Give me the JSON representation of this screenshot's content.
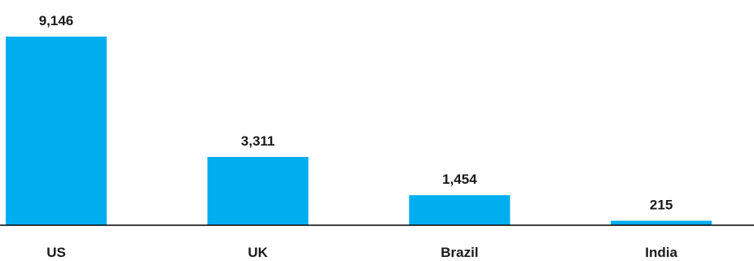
{
  "chart_data": {
    "type": "bar",
    "categories": [
      "US",
      "UK",
      "Brazil",
      "India"
    ],
    "values": [
      9146,
      3311,
      1454,
      215
    ],
    "value_labels": [
      "9,146",
      "3,311",
      "1,454",
      "215"
    ],
    "title": "",
    "xlabel": "",
    "ylabel": "",
    "ylim": [
      0,
      9146
    ],
    "grid": false,
    "legend": "none",
    "bar_color": "#00AEEF",
    "axis_color": "#000000"
  }
}
